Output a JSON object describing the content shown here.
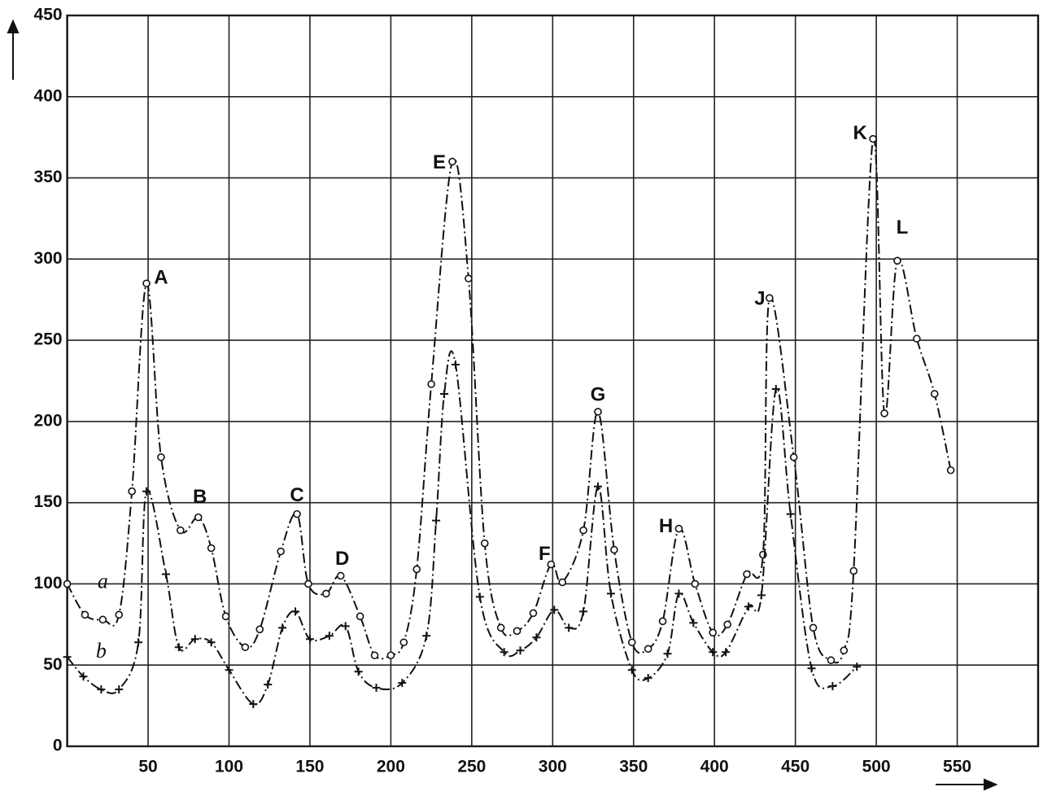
{
  "chart_data": {
    "type": "line",
    "xlim": [
      0,
      600
    ],
    "ylim": [
      0,
      450
    ],
    "xticks": [
      50,
      100,
      150,
      200,
      250,
      300,
      350,
      400,
      450,
      500,
      550
    ],
    "yticks": [
      0,
      50,
      100,
      150,
      200,
      250,
      300,
      350,
      400,
      450
    ],
    "grid": true,
    "series": [
      {
        "name": "a",
        "color": "#111111",
        "marker": "circle",
        "x": [
          0,
          11,
          22,
          32,
          40,
          49,
          58,
          70,
          81,
          89,
          98,
          110,
          119,
          132,
          142,
          149,
          160,
          169,
          181,
          190,
          200,
          208,
          216,
          225,
          238,
          248,
          258,
          268,
          278,
          288,
          299,
          306,
          319,
          328,
          338,
          349,
          359,
          368,
          378,
          388,
          399,
          408,
          420,
          430,
          434,
          449,
          461,
          472,
          480,
          486,
          498,
          505,
          513,
          525,
          536,
          546
        ],
        "values": [
          100,
          81,
          78,
          81,
          157,
          285,
          178,
          133,
          141,
          122,
          80,
          61,
          72,
          120,
          143,
          100,
          94,
          105,
          80,
          56,
          56,
          64,
          109,
          223,
          360,
          288,
          125,
          73,
          71,
          82,
          112,
          101,
          133,
          206,
          121,
          64,
          60,
          77,
          134,
          100,
          70,
          75,
          106,
          118,
          276,
          178,
          73,
          53,
          59,
          108,
          374,
          205,
          299,
          251,
          217,
          170
        ]
      },
      {
        "name": "b",
        "color": "#111111",
        "marker": "plus",
        "x": [
          0,
          10,
          21,
          32,
          44,
          49,
          61,
          69,
          79,
          89,
          100,
          115,
          124,
          133,
          141,
          150,
          162,
          172,
          180,
          191,
          207,
          222,
          228,
          233,
          240,
          255,
          270,
          280,
          290,
          301,
          310,
          319,
          328,
          336,
          349,
          359,
          371,
          378,
          387,
          399,
          407,
          421,
          429,
          438,
          447,
          460,
          473,
          488
        ],
        "values": [
          55,
          43,
          35,
          35,
          64,
          157,
          106,
          61,
          66,
          64,
          47,
          26,
          38,
          73,
          83,
          66,
          68,
          74,
          46,
          36,
          39,
          68,
          139,
          217,
          235,
          92,
          58,
          59,
          67,
          84,
          73,
          83,
          160,
          94,
          47,
          42,
          57,
          94,
          76,
          58,
          58,
          86,
          93,
          220,
          143,
          48,
          37,
          49
        ]
      }
    ],
    "annotations": [
      {
        "text": "A",
        "x": 58,
        "y": 288
      },
      {
        "text": "B",
        "x": 82,
        "y": 153
      },
      {
        "text": "C",
        "x": 142,
        "y": 154
      },
      {
        "text": "D",
        "x": 170,
        "y": 115
      },
      {
        "text": "E",
        "x": 230,
        "y": 359
      },
      {
        "text": "F",
        "x": 295,
        "y": 118
      },
      {
        "text": "G",
        "x": 328,
        "y": 216
      },
      {
        "text": "H",
        "x": 370,
        "y": 135
      },
      {
        "text": "J",
        "x": 428,
        "y": 275
      },
      {
        "text": "K",
        "x": 490,
        "y": 377
      },
      {
        "text": "L",
        "x": 516,
        "y": 319
      }
    ]
  }
}
